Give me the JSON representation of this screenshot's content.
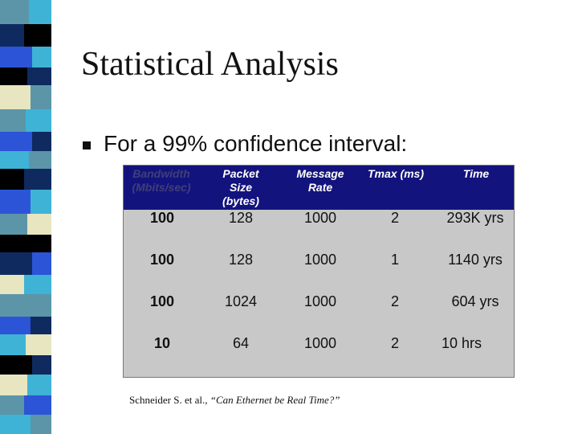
{
  "slide": {
    "title": "Statistical Analysis",
    "bullet": "For a 99% confidence interval:",
    "citation_prefix": "Schneider S. et al., ",
    "citation_title": "“Can Ethernet be Real Time?”"
  },
  "table": {
    "headers": [
      "Bandwidth (Mbits/sec)",
      "Packet Size (bytes)",
      "Message Rate",
      "Tmax (ms)",
      "Time"
    ],
    "rows": [
      [
        "100",
        "128",
        "1000",
        "2",
        "293K yrs"
      ],
      [
        "100",
        "128",
        "1000",
        "1",
        "1140 yrs"
      ],
      [
        "100",
        "1024",
        "1000",
        "2",
        "604 yrs"
      ],
      [
        "10",
        "64",
        "1000",
        "2",
        "10 hrs"
      ]
    ]
  },
  "colors": {
    "table_header": "#13137e",
    "table_body": "#c8c8c8",
    "stripe_dark": "#000000",
    "stripe_navy": "#0f2a5e",
    "stripe_blue": "#2c54d6",
    "stripe_teal": "#5c95a8",
    "stripe_lightblue": "#3fb3d6",
    "stripe_cream": "#e7e6c0"
  }
}
